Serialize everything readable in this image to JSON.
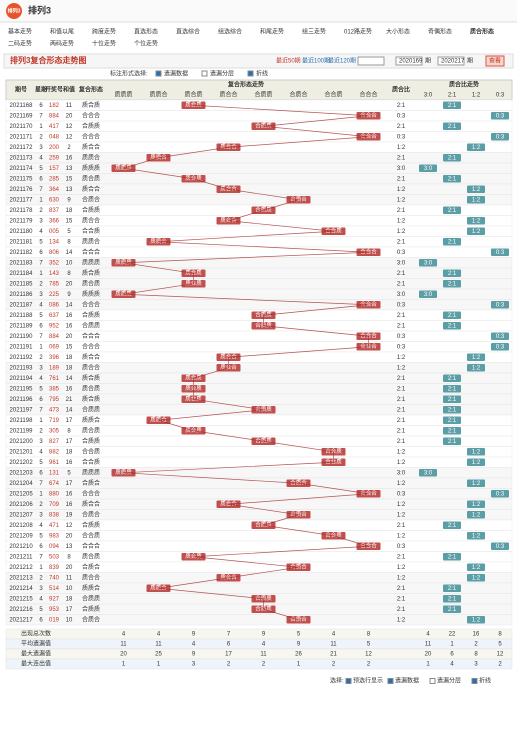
{
  "header": {
    "logo": "排列3",
    "title": "排列3"
  },
  "nav": [
    "基本走势",
    "和值以尾",
    "跨度走势",
    "直选形态",
    "直选综合",
    "组选综合",
    "和尾走势",
    "组三走势",
    "012路走势",
    "大小形态",
    "奇偶形态",
    "质合形态",
    "二码走势",
    "两码走势",
    "十位走势",
    "个位走势"
  ],
  "toolbar": {
    "title": "排列3复合形态走势图",
    "ranges": [
      "最近50期",
      "最近100期",
      "最近120期"
    ],
    "from": "2020169",
    "from_unit": "期",
    "to": "2020217",
    "to_unit": "期",
    "button": "查看"
  },
  "options": {
    "label": "标注形式选择:",
    "items": [
      "遗漏数据",
      "遗漏分层",
      "折线"
    ]
  },
  "table": {
    "columns": [
      "期号",
      "星期",
      "开奖号",
      "和值",
      "复合形态",
      "质合比"
    ],
    "forms": [
      "质质质",
      "质质合",
      "质合质",
      "质合合",
      "合质质",
      "合质合",
      "合合质",
      "合合合"
    ],
    "ratios": [
      "3:0",
      "2:1",
      "1:2",
      "0:3"
    ],
    "form_group": "复合形态走势",
    "ratio_group": "质合比走势",
    "rows": [
      [
        "2021168",
        "6",
        "182",
        "11",
        "质合质",
        "2:1"
      ],
      [
        "2021169",
        "7",
        "884",
        "20",
        "合合合",
        "0:3"
      ],
      [
        "2021170",
        "1",
        "417",
        "12",
        "合质质",
        "2:1"
      ],
      [
        "2021171",
        "2",
        "048",
        "12",
        "合合合",
        "0:3"
      ],
      [
        "2021172",
        "3",
        "200",
        "2",
        "质合合",
        "1:2"
      ],
      [
        "2021173",
        "4",
        "259",
        "16",
        "质质合",
        "2:1"
      ],
      [
        "2021174",
        "5",
        "157",
        "13",
        "质质质",
        "3:0"
      ],
      [
        "2021175",
        "6",
        "285",
        "15",
        "质合质",
        "2:1"
      ],
      [
        "2021176",
        "7",
        "364",
        "13",
        "质合合",
        "1:2"
      ],
      [
        "2021177",
        "1",
        "630",
        "9",
        "合质合",
        "1:2"
      ],
      [
        "2021178",
        "2",
        "837",
        "18",
        "合质质",
        "2:1"
      ],
      [
        "2021179",
        "3",
        "366",
        "15",
        "质合合",
        "1:2"
      ],
      [
        "2021180",
        "4",
        "005",
        "5",
        "合合质",
        "1:2"
      ],
      [
        "2021181",
        "5",
        "134",
        "8",
        "质质合",
        "2:1"
      ],
      [
        "2021182",
        "6",
        "806",
        "14",
        "合合合",
        "0:3"
      ],
      [
        "2021183",
        "7",
        "352",
        "10",
        "质质质",
        "3:0"
      ],
      [
        "2021184",
        "1",
        "143",
        "8",
        "质合质",
        "2:1"
      ],
      [
        "2021185",
        "2",
        "785",
        "20",
        "质合质",
        "2:1"
      ],
      [
        "2021186",
        "3",
        "225",
        "9",
        "质质质",
        "3:0"
      ],
      [
        "2021187",
        "4",
        "086",
        "14",
        "合合合",
        "0:3"
      ],
      [
        "2021188",
        "5",
        "637",
        "16",
        "合质质",
        "2:1"
      ],
      [
        "2021189",
        "6",
        "952",
        "16",
        "合质质",
        "2:1"
      ],
      [
        "2021190",
        "7",
        "884",
        "20",
        "合合合",
        "0:3"
      ],
      [
        "2021191",
        "1",
        "069",
        "15",
        "合合合",
        "0:3"
      ],
      [
        "2021192",
        "2",
        "396",
        "18",
        "质合合",
        "1:2"
      ],
      [
        "2021193",
        "3",
        "189",
        "18",
        "质合合",
        "1:2"
      ],
      [
        "2021194",
        "4",
        "761",
        "14",
        "质合质",
        "2:1"
      ],
      [
        "2021195",
        "5",
        "385",
        "16",
        "质合质",
        "2:1"
      ],
      [
        "2021196",
        "6",
        "795",
        "21",
        "质合质",
        "2:1"
      ],
      [
        "2021197",
        "7",
        "473",
        "14",
        "合质质",
        "2:1"
      ],
      [
        "2021198",
        "1",
        "719",
        "17",
        "质质合",
        "2:1"
      ],
      [
        "2021199",
        "2",
        "305",
        "8",
        "质合质",
        "2:1"
      ],
      [
        "2021200",
        "3",
        "827",
        "17",
        "合质质",
        "2:1"
      ],
      [
        "2021201",
        "4",
        "882",
        "18",
        "合合质",
        "1:2"
      ],
      [
        "2021202",
        "5",
        "961",
        "16",
        "合合质",
        "1:2"
      ],
      [
        "2021203",
        "6",
        "131",
        "5",
        "质质质",
        "3:0"
      ],
      [
        "2021204",
        "7",
        "674",
        "17",
        "合质合",
        "1:2"
      ],
      [
        "2021205",
        "1",
        "880",
        "16",
        "合合合",
        "0:3"
      ],
      [
        "2021206",
        "2",
        "709",
        "16",
        "质合合",
        "1:2"
      ],
      [
        "2021207",
        "3",
        "838",
        "19",
        "合质合",
        "1:2"
      ],
      [
        "2021208",
        "4",
        "471",
        "12",
        "合质质",
        "2:1"
      ],
      [
        "2021209",
        "5",
        "983",
        "20",
        "合合质",
        "1:2"
      ],
      [
        "2021210",
        "6",
        "094",
        "13",
        "合合合",
        "0:3"
      ],
      [
        "2021211",
        "7",
        "503",
        "8",
        "质合质",
        "2:1"
      ],
      [
        "2021212",
        "1",
        "839",
        "20",
        "合质合",
        "1:2"
      ],
      [
        "2021213",
        "2",
        "740",
        "11",
        "质合合",
        "1:2"
      ],
      [
        "2021214",
        "3",
        "514",
        "10",
        "质质合",
        "2:1"
      ],
      [
        "2021215",
        "4",
        "927",
        "18",
        "合质质",
        "2:1"
      ],
      [
        "2021216",
        "5",
        "953",
        "17",
        "合质质",
        "2:1"
      ],
      [
        "2021217",
        "6",
        "019",
        "10",
        "合质合",
        "1:2"
      ]
    ],
    "stats": [
      {
        "label": "出现总次数",
        "forms": [
          "4",
          "4",
          "9",
          "7",
          "9",
          "5",
          "4",
          "8"
        ],
        "ratios": [
          "4",
          "22",
          "16",
          "8"
        ]
      },
      {
        "label": "平均遗漏值",
        "forms": [
          "11",
          "11",
          "4",
          "6",
          "4",
          "9",
          "11",
          "5"
        ],
        "ratios": [
          "11",
          "1",
          "2",
          "5"
        ]
      },
      {
        "label": "最大遗漏值",
        "forms": [
          "20",
          "25",
          "9",
          "17",
          "11",
          "26",
          "21",
          "12"
        ],
        "ratios": [
          "20",
          "6",
          "8",
          "12"
        ]
      },
      {
        "label": "最大连出值",
        "forms": [
          "1",
          "1",
          "3",
          "2",
          "2",
          "1",
          "2",
          "2"
        ],
        "ratios": [
          "1",
          "4",
          "3",
          "2"
        ]
      }
    ]
  },
  "footer": {
    "label": "选择:",
    "items": [
      "预选行显示",
      "遗漏数据",
      "遗漏分层",
      "折线"
    ]
  }
}
